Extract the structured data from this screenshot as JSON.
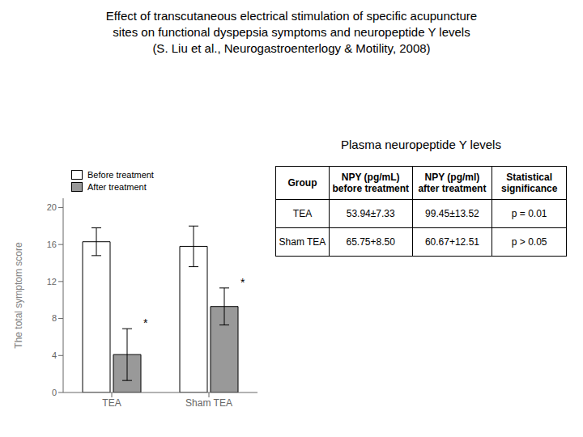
{
  "chart_data": {
    "type": "bar",
    "title": "Effect of transcutaneous electrical stimulation of specific acupuncture\nsites on functional dyspepsia symptoms and neuropeptide Y levels\n(S. Liu et al., Neurogastroenterlogy & Motility, 2008)",
    "categories": [
      "TEA",
      "Sham TEA"
    ],
    "series": [
      {
        "name": "Before treatment",
        "color": "#ffffff",
        "values": [
          16.3,
          15.8
        ],
        "errors": [
          1.5,
          2.2
        ]
      },
      {
        "name": "After treatment",
        "color": "#999999",
        "values": [
          4.1,
          9.3
        ],
        "errors": [
          2.8,
          2.0
        ]
      }
    ],
    "ylabel": "The total symptom score",
    "ylim": [
      0,
      21
    ],
    "yticks": [
      0,
      4,
      8,
      12,
      16,
      20
    ],
    "grid": false,
    "legend": "upper left",
    "annotations": [
      {
        "text": "*",
        "category": "TEA",
        "series": "After treatment"
      },
      {
        "text": "*",
        "category": "Sham TEA",
        "series": "After treatment"
      }
    ],
    "table": {
      "title": "Plasma neuropeptide Y levels",
      "headers": [
        "Group",
        "NPY (pg/mL)\nbefore treatment",
        "NPY (pg/ml)\nafter treatment",
        "Statistical\nsignificance"
      ],
      "rows": [
        [
          "TEA",
          "53.94±7.33",
          "99.45±13.52",
          "p = 0.01"
        ],
        [
          "Sham TEA",
          "65.75+8.50",
          "60.67+12.51",
          "p > 0.05"
        ]
      ]
    }
  }
}
